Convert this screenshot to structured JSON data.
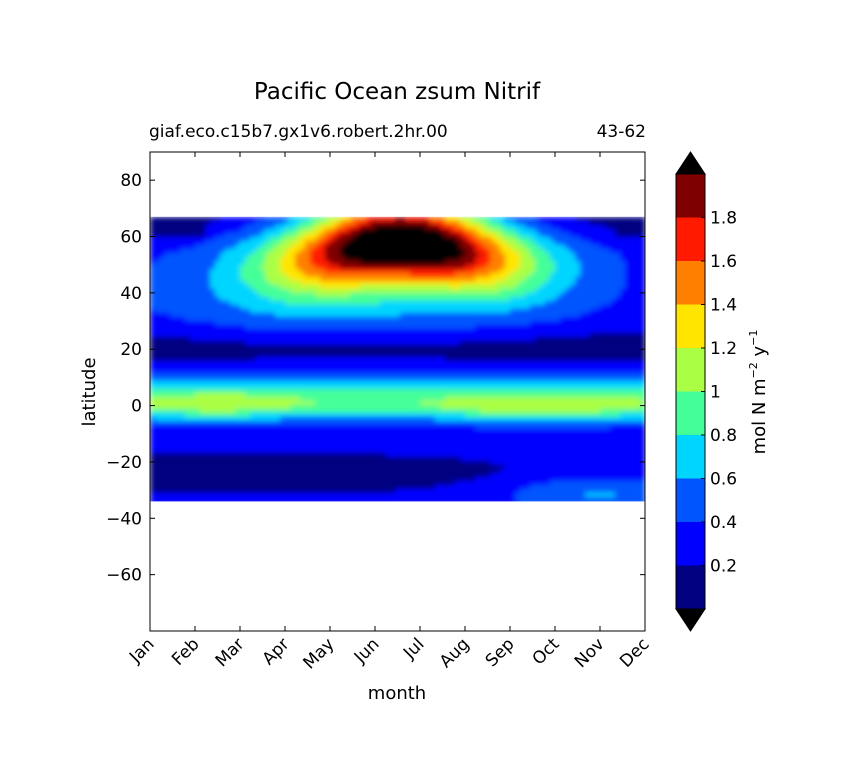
{
  "chart_data": {
    "type": "heatmap",
    "title": "Pacific Ocean zsum Nitrif",
    "subtitle_left": "giaf.eco.c15b7.gx1v6.robert.2hr.00",
    "subtitle_right": "43-62",
    "xlabel": "month",
    "ylabel": "latitude",
    "x_ticks": [
      "Jan",
      "Feb",
      "Mar",
      "Apr",
      "May",
      "Jun",
      "Jul",
      "Aug",
      "Sep",
      "Oct",
      "Nov",
      "Dec"
    ],
    "y_ticks": [
      80,
      60,
      40,
      20,
      0,
      -20,
      -40,
      -60
    ],
    "y_tick_labels": [
      "80",
      "60",
      "40",
      "20",
      "0",
      "−20",
      "−40",
      "−60"
    ],
    "ylim": [
      -80,
      90
    ],
    "data_lat_range": [
      -34,
      67
    ],
    "colorbar": {
      "label": "mol N m⁻² y⁻¹",
      "label_main": "mol N m",
      "label_exp1": "−2",
      "label_mid": " y",
      "label_exp2": "−1",
      "levels": [
        0,
        0.2,
        0.4,
        0.6,
        0.8,
        1.0,
        1.2,
        1.4,
        1.6,
        1.8,
        2.0
      ],
      "tick_values": [
        0.2,
        0.4,
        0.6,
        0.8,
        1.0,
        1.2,
        1.4,
        1.6,
        1.8
      ],
      "tick_labels": [
        "0.2",
        "0.4",
        "0.6",
        "0.8",
        "1",
        "1.2",
        "1.4",
        "1.6",
        "1.8"
      ],
      "colors": [
        "#000080",
        "#0000ff",
        "#0055ff",
        "#00d5ff",
        "#44ff99",
        "#aaff44",
        "#ffe500",
        "#ff7f00",
        "#ff1a00",
        "#7f0000"
      ],
      "under_color": "#000000",
      "over_color": "#000000",
      "extend": "both"
    }
  }
}
